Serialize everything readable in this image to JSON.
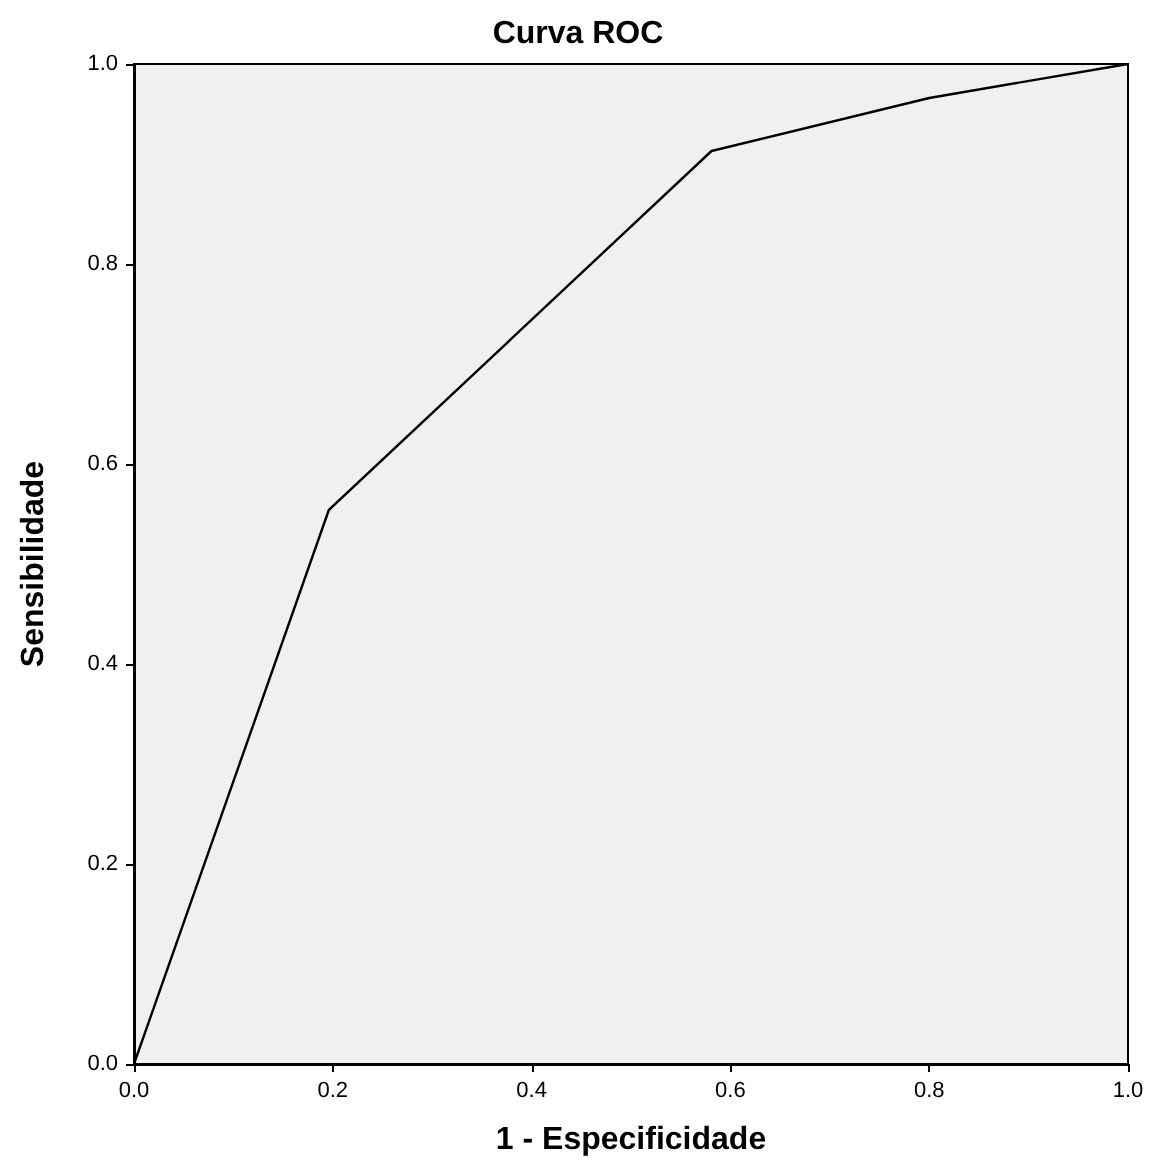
{
  "chart_data": {
    "type": "line",
    "title": "Curva ROC",
    "xlabel": "1 - Especificidade",
    "ylabel": "Sensibilidade",
    "x": [
      0,
      0.196,
      0.581,
      0.8,
      1
    ],
    "series": [
      {
        "color": "#000000",
        "values": [
          0,
          0.554,
          0.913,
          0.966,
          1
        ]
      }
    ],
    "xlim": [
      0,
      1
    ],
    "ylim": [
      0,
      1
    ],
    "xticks": [
      {
        "value": 0,
        "label": "0.0"
      },
      0.2,
      0.4,
      0.6,
      0.8,
      {
        "value": 1,
        "label": "1.0"
      }
    ],
    "yticks": [
      {
        "value": 0,
        "label": "0.0"
      },
      0.2,
      0.4,
      0.6,
      0.8,
      {
        "value": 1,
        "label": "1.0"
      }
    ],
    "grid": false,
    "marker": "none",
    "line_style": "solid"
  }
}
